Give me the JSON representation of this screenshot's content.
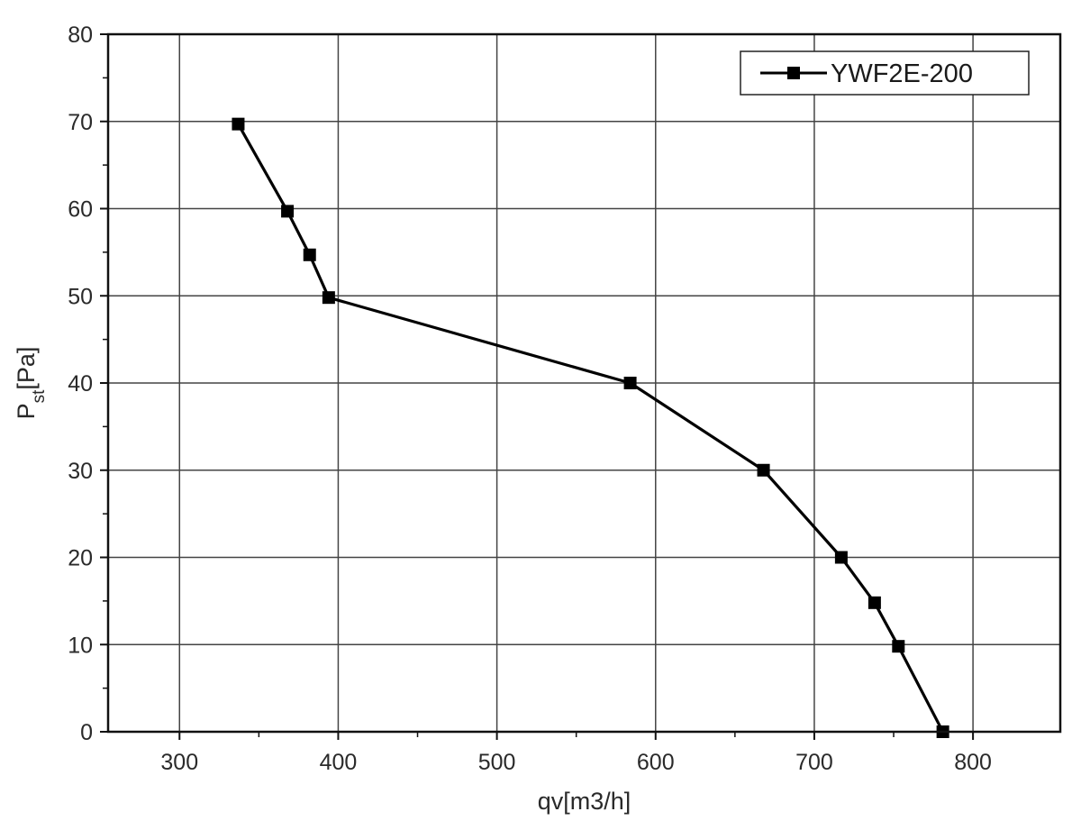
{
  "chart_data": {
    "type": "line",
    "title": "",
    "xlabel": "qv[m3/h]",
    "ylabel": {
      "main": "P",
      "sub": "st",
      "rest": "[Pa]"
    },
    "xlim": [
      255,
      855
    ],
    "ylim": [
      0,
      80
    ],
    "xticks": [
      300,
      400,
      500,
      600,
      700,
      800
    ],
    "yticks": [
      0,
      10,
      20,
      30,
      40,
      50,
      60,
      70,
      80
    ],
    "grid": true,
    "legend": {
      "placement": "top-right",
      "entries": [
        "YWF2E-200"
      ]
    },
    "series": [
      {
        "name": "YWF2E-200",
        "marker": "square",
        "color": "#000000",
        "points": [
          {
            "x": 337,
            "y": 69.7
          },
          {
            "x": 368,
            "y": 59.7
          },
          {
            "x": 382,
            "y": 54.7
          },
          {
            "x": 394,
            "y": 49.8
          },
          {
            "x": 584,
            "y": 40
          },
          {
            "x": 668,
            "y": 30
          },
          {
            "x": 717,
            "y": 20
          },
          {
            "x": 738,
            "y": 14.8
          },
          {
            "x": 753,
            "y": 9.8
          },
          {
            "x": 781,
            "y": 0
          }
        ]
      }
    ]
  }
}
